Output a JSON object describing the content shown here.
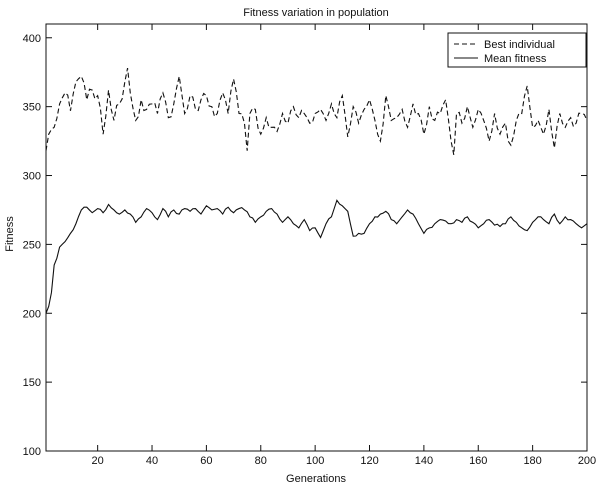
{
  "chart_data": {
    "type": "line",
    "title": "Fitness variation in population",
    "xlabel": "Generations",
    "ylabel": "Fitness",
    "xlim": [
      1,
      200
    ],
    "ylim": [
      100,
      410
    ],
    "xticks": [
      20,
      40,
      60,
      80,
      100,
      120,
      140,
      160,
      180,
      200
    ],
    "yticks": [
      100,
      150,
      200,
      250,
      300,
      350,
      400
    ],
    "legend_position": "top-right",
    "grid": false,
    "series": [
      {
        "name": "Best individual",
        "style": "dashed",
        "color": "#111111",
        "keypoints": [
          [
            1,
            318
          ],
          [
            2,
            330
          ],
          [
            4,
            335
          ],
          [
            6,
            352
          ],
          [
            8,
            360
          ],
          [
            10,
            347
          ],
          [
            12,
            368
          ],
          [
            14,
            372
          ],
          [
            16,
            355
          ],
          [
            18,
            362
          ],
          [
            20,
            358
          ],
          [
            22,
            330
          ],
          [
            24,
            362
          ],
          [
            26,
            340
          ],
          [
            28,
            352
          ],
          [
            30,
            368
          ],
          [
            31,
            378
          ],
          [
            32,
            360
          ],
          [
            34,
            340
          ],
          [
            36,
            355
          ],
          [
            38,
            348
          ],
          [
            40,
            352
          ],
          [
            42,
            345
          ],
          [
            44,
            360
          ],
          [
            46,
            342
          ],
          [
            48,
            352
          ],
          [
            50,
            372
          ],
          [
            52,
            345
          ],
          [
            54,
            358
          ],
          [
            56,
            348
          ],
          [
            58,
            355
          ],
          [
            60,
            358
          ],
          [
            62,
            350
          ],
          [
            64,
            345
          ],
          [
            66,
            360
          ],
          [
            68,
            345
          ],
          [
            70,
            370
          ],
          [
            72,
            345
          ],
          [
            74,
            338
          ],
          [
            75,
            318
          ],
          [
            76,
            345
          ],
          [
            78,
            348
          ],
          [
            80,
            330
          ],
          [
            82,
            342
          ],
          [
            84,
            335
          ],
          [
            86,
            332
          ],
          [
            88,
            345
          ],
          [
            90,
            338
          ],
          [
            92,
            350
          ],
          [
            94,
            342
          ],
          [
            96,
            345
          ],
          [
            98,
            338
          ],
          [
            100,
            345
          ],
          [
            102,
            348
          ],
          [
            104,
            340
          ],
          [
            106,
            352
          ],
          [
            108,
            342
          ],
          [
            110,
            358
          ],
          [
            112,
            328
          ],
          [
            114,
            350
          ],
          [
            116,
            338
          ],
          [
            118,
            348
          ],
          [
            120,
            355
          ],
          [
            122,
            340
          ],
          [
            124,
            325
          ],
          [
            126,
            358
          ],
          [
            128,
            340
          ],
          [
            130,
            342
          ],
          [
            132,
            348
          ],
          [
            134,
            335
          ],
          [
            136,
            352
          ],
          [
            138,
            345
          ],
          [
            140,
            330
          ],
          [
            142,
            350
          ],
          [
            144,
            340
          ],
          [
            146,
            345
          ],
          [
            148,
            355
          ],
          [
            150,
            325
          ],
          [
            151,
            315
          ],
          [
            152,
            345
          ],
          [
            154,
            338
          ],
          [
            156,
            350
          ],
          [
            158,
            335
          ],
          [
            160,
            348
          ],
          [
            162,
            340
          ],
          [
            164,
            325
          ],
          [
            166,
            345
          ],
          [
            168,
            330
          ],
          [
            170,
            338
          ],
          [
            172,
            322
          ],
          [
            174,
            340
          ],
          [
            176,
            345
          ],
          [
            178,
            365
          ],
          [
            180,
            335
          ],
          [
            182,
            340
          ],
          [
            184,
            330
          ],
          [
            186,
            348
          ],
          [
            188,
            320
          ],
          [
            190,
            345
          ],
          [
            192,
            335
          ],
          [
            194,
            342
          ],
          [
            196,
            338
          ],
          [
            198,
            345
          ],
          [
            200,
            340
          ]
        ]
      },
      {
        "name": "Mean fitness",
        "style": "solid",
        "color": "#111111",
        "keypoints": [
          [
            1,
            200
          ],
          [
            2,
            205
          ],
          [
            3,
            215
          ],
          [
            4,
            235
          ],
          [
            5,
            240
          ],
          [
            6,
            248
          ],
          [
            8,
            252
          ],
          [
            10,
            258
          ],
          [
            12,
            265
          ],
          [
            14,
            275
          ],
          [
            16,
            277
          ],
          [
            18,
            273
          ],
          [
            20,
            276
          ],
          [
            22,
            273
          ],
          [
            24,
            279
          ],
          [
            26,
            275
          ],
          [
            28,
            272
          ],
          [
            30,
            275
          ],
          [
            32,
            272
          ],
          [
            34,
            266
          ],
          [
            36,
            270
          ],
          [
            38,
            276
          ],
          [
            40,
            273
          ],
          [
            42,
            268
          ],
          [
            44,
            276
          ],
          [
            46,
            270
          ],
          [
            48,
            275
          ],
          [
            50,
            272
          ],
          [
            52,
            276
          ],
          [
            54,
            274
          ],
          [
            56,
            276
          ],
          [
            58,
            272
          ],
          [
            60,
            278
          ],
          [
            62,
            275
          ],
          [
            64,
            276
          ],
          [
            66,
            272
          ],
          [
            68,
            277
          ],
          [
            70,
            273
          ],
          [
            72,
            276
          ],
          [
            74,
            275
          ],
          [
            76,
            270
          ],
          [
            78,
            266
          ],
          [
            80,
            270
          ],
          [
            82,
            274
          ],
          [
            84,
            276
          ],
          [
            86,
            272
          ],
          [
            88,
            266
          ],
          [
            90,
            270
          ],
          [
            92,
            265
          ],
          [
            94,
            262
          ],
          [
            96,
            268
          ],
          [
            98,
            260
          ],
          [
            100,
            262
          ],
          [
            102,
            255
          ],
          [
            104,
            265
          ],
          [
            106,
            270
          ],
          [
            108,
            282
          ],
          [
            110,
            278
          ],
          [
            112,
            274
          ],
          [
            114,
            256
          ],
          [
            116,
            258
          ],
          [
            118,
            258
          ],
          [
            120,
            265
          ],
          [
            122,
            270
          ],
          [
            124,
            272
          ],
          [
            126,
            274
          ],
          [
            128,
            268
          ],
          [
            130,
            265
          ],
          [
            132,
            270
          ],
          [
            134,
            275
          ],
          [
            136,
            272
          ],
          [
            138,
            265
          ],
          [
            140,
            258
          ],
          [
            142,
            262
          ],
          [
            144,
            265
          ],
          [
            146,
            268
          ],
          [
            148,
            267
          ],
          [
            150,
            265
          ],
          [
            152,
            268
          ],
          [
            154,
            266
          ],
          [
            156,
            270
          ],
          [
            158,
            266
          ],
          [
            160,
            262
          ],
          [
            162,
            265
          ],
          [
            164,
            268
          ],
          [
            166,
            264
          ],
          [
            168,
            263
          ],
          [
            170,
            265
          ],
          [
            172,
            270
          ],
          [
            174,
            266
          ],
          [
            176,
            262
          ],
          [
            178,
            260
          ],
          [
            180,
            266
          ],
          [
            182,
            270
          ],
          [
            184,
            268
          ],
          [
            186,
            265
          ],
          [
            188,
            272
          ],
          [
            190,
            265
          ],
          [
            192,
            270
          ],
          [
            194,
            268
          ],
          [
            196,
            265
          ],
          [
            198,
            262
          ],
          [
            200,
            265
          ]
        ]
      }
    ]
  }
}
